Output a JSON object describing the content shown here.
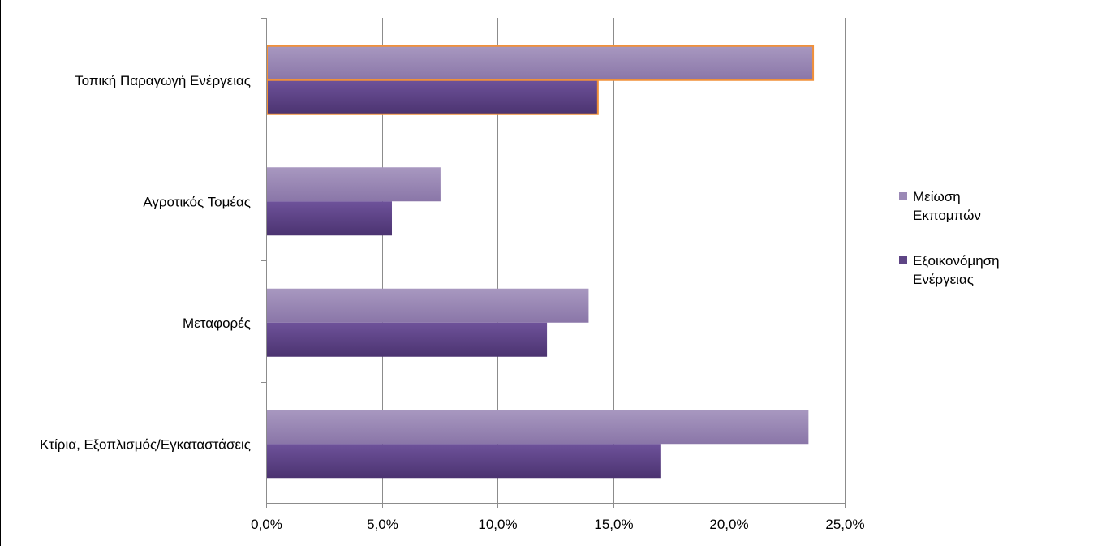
{
  "chart_data": {
    "type": "bar",
    "orientation": "horizontal",
    "categories": [
      "Τοπική Παραγωγή Ενέργειας",
      "Αγροτικός Τομέας",
      "Μεταφορές",
      "Κτίρια, Εξοπλισμός/Εγκαταστάσεις"
    ],
    "series": [
      {
        "name": "Μείωση Εκπομπών",
        "values": [
          23.6,
          7.5,
          13.9,
          23.4
        ],
        "color": "#9b89b6"
      },
      {
        "name": "Εξοικονόμηση Ενέργειας",
        "values": [
          14.3,
          5.4,
          12.1,
          17.0
        ],
        "color": "#5e4585"
      }
    ],
    "x_tick_labels": [
      "0,0%",
      "5,0%",
      "10,0%",
      "15,0%",
      "20,0%",
      "25,0%"
    ],
    "xlim": [
      0,
      25
    ],
    "grid": true,
    "legend_position": "right",
    "legend": {
      "items": [
        {
          "lines": [
            "Μείωση",
            "Εκπομπών"
          ],
          "color": "#9b89b6"
        },
        {
          "lines": [
            "Εξοικονόμηση",
            "Ενέργειας"
          ],
          "color": "#5e4585"
        }
      ]
    },
    "highlight": {
      "category_index": 0,
      "color": "#f0903a"
    }
  }
}
